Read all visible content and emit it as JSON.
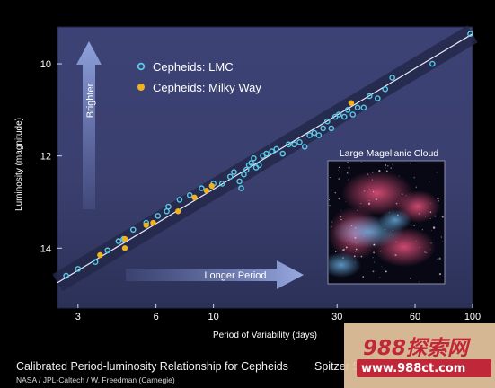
{
  "chart_data": {
    "type": "scatter",
    "x_scale": "log",
    "y_inverted": true,
    "xlabel": "Period of Variability (days)",
    "ylabel": "Luminosity (magnitude)",
    "xlim": [
      2.5,
      100
    ],
    "ylim": [
      15.3,
      9.2
    ],
    "x_ticks": [
      3,
      6,
      10,
      30,
      60,
      100
    ],
    "y_ticks": [
      10,
      12,
      14
    ],
    "series": [
      {
        "name": "Cepheids: LMC",
        "color": "#5bc8e6",
        "points": [
          [
            2.7,
            14.6
          ],
          [
            3.0,
            14.45
          ],
          [
            3.5,
            14.3
          ],
          [
            3.9,
            14.05
          ],
          [
            4.3,
            13.85
          ],
          [
            4.5,
            13.8
          ],
          [
            4.9,
            13.6
          ],
          [
            5.5,
            13.45
          ],
          [
            6.1,
            13.3
          ],
          [
            6.6,
            13.2
          ],
          [
            6.7,
            13.1
          ],
          [
            7.4,
            12.95
          ],
          [
            8.1,
            12.85
          ],
          [
            9.0,
            12.7
          ],
          [
            10.0,
            12.6
          ],
          [
            10.8,
            12.6
          ],
          [
            11.6,
            12.45
          ],
          [
            12.0,
            12.35
          ],
          [
            12.6,
            12.55
          ],
          [
            12.8,
            12.7
          ],
          [
            13.1,
            12.4
          ],
          [
            13.4,
            12.3
          ],
          [
            13.7,
            12.2
          ],
          [
            14.0,
            12.15
          ],
          [
            14.3,
            12.05
          ],
          [
            14.6,
            12.25
          ],
          [
            15.0,
            12.2
          ],
          [
            15.5,
            12.0
          ],
          [
            16.0,
            11.95
          ],
          [
            16.8,
            11.9
          ],
          [
            17.5,
            11.85
          ],
          [
            18.5,
            11.95
          ],
          [
            19.5,
            11.75
          ],
          [
            20.5,
            11.75
          ],
          [
            21.5,
            11.7
          ],
          [
            22.5,
            11.8
          ],
          [
            23.5,
            11.55
          ],
          [
            24.5,
            11.5
          ],
          [
            25.5,
            11.55
          ],
          [
            26.5,
            11.4
          ],
          [
            27.5,
            11.25
          ],
          [
            28.5,
            11.4
          ],
          [
            29.5,
            11.15
          ],
          [
            30.5,
            11.1
          ],
          [
            32.0,
            11.15
          ],
          [
            33.0,
            11.0
          ],
          [
            34.5,
            11.1
          ],
          [
            36.0,
            10.95
          ],
          [
            38.0,
            10.95
          ],
          [
            40.0,
            10.7
          ],
          [
            43.0,
            10.75
          ],
          [
            46.0,
            10.55
          ],
          [
            49.0,
            10.3
          ],
          [
            70.0,
            10.0
          ],
          [
            98.0,
            9.35
          ]
        ]
      },
      {
        "name": "Cepheids: Milky Way",
        "color": "#f0b21e",
        "points": [
          [
            3.65,
            14.15
          ],
          [
            4.55,
            14.0
          ],
          [
            4.55,
            13.8
          ],
          [
            5.5,
            13.5
          ],
          [
            5.85,
            13.45
          ],
          [
            7.3,
            13.2
          ],
          [
            8.45,
            12.9
          ],
          [
            9.4,
            12.75
          ],
          [
            9.85,
            12.65
          ],
          [
            34.0,
            10.85
          ]
        ]
      }
    ],
    "fit_line": {
      "x": [
        2.5,
        100
      ],
      "y": [
        14.75,
        9.35
      ]
    },
    "legend_position": "top-left",
    "annotations": {
      "brighter": "Brighter",
      "longer_period": "Longer Period",
      "inset_title": "Large Magellanic Cloud"
    }
  },
  "caption": "Calibrated Period-luminosity Relationship for Cepheids",
  "credit": "NASA / JPL-Caltech / W. Freedman (Carnegie)",
  "mission": "Spitzer Sp",
  "watermark_logo": "988探索网",
  "watermark_url": "www.988ct.com"
}
